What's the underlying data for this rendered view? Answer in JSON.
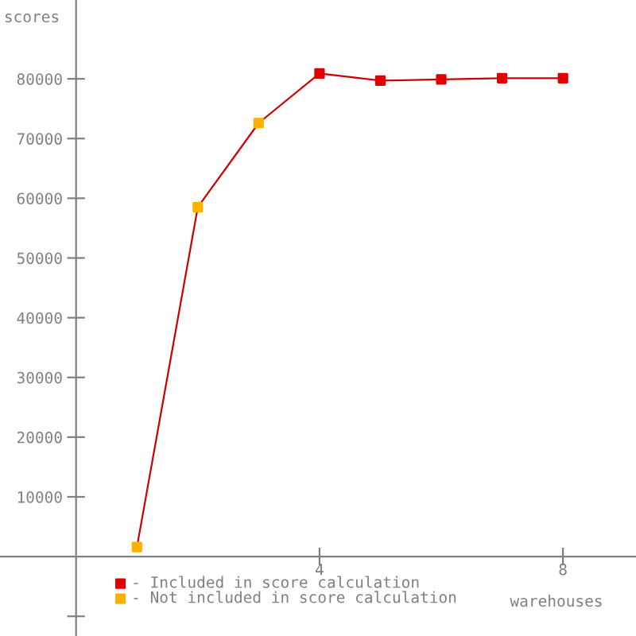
{
  "chart_data": {
    "type": "line",
    "xlabel": "warehouses",
    "ylabel": "scores",
    "xlim": [
      -1.25,
      9.2
    ],
    "xticks": [
      4,
      8
    ],
    "ylim": [
      -13300,
      93200
    ],
    "yticks": [
      {
        "value": -10000,
        "label": null
      },
      10000,
      20000,
      30000,
      40000,
      50000,
      60000,
      70000,
      80000
    ],
    "grid": false,
    "legend": "bottom left",
    "marker": "square",
    "series": [
      {
        "color": "#cc0000",
        "x": [
          1,
          2,
          3,
          4,
          5,
          6,
          7,
          8
        ],
        "values": [
          1600,
          58500,
          72600,
          80900,
          79700,
          79900,
          80100,
          80100
        ],
        "marker": "none"
      },
      {
        "type": "scatter",
        "name": "- Included in score calculation",
        "color": "#e00000",
        "x": [
          4,
          5,
          6,
          7,
          8
        ],
        "values": [
          80900,
          79700,
          79900,
          80100,
          80100
        ]
      },
      {
        "type": "scatter",
        "name": "- Not included in score calculation",
        "color": "#ffb000",
        "x": [
          1,
          2,
          3
        ],
        "values": [
          1600,
          58500,
          72600
        ]
      }
    ]
  }
}
